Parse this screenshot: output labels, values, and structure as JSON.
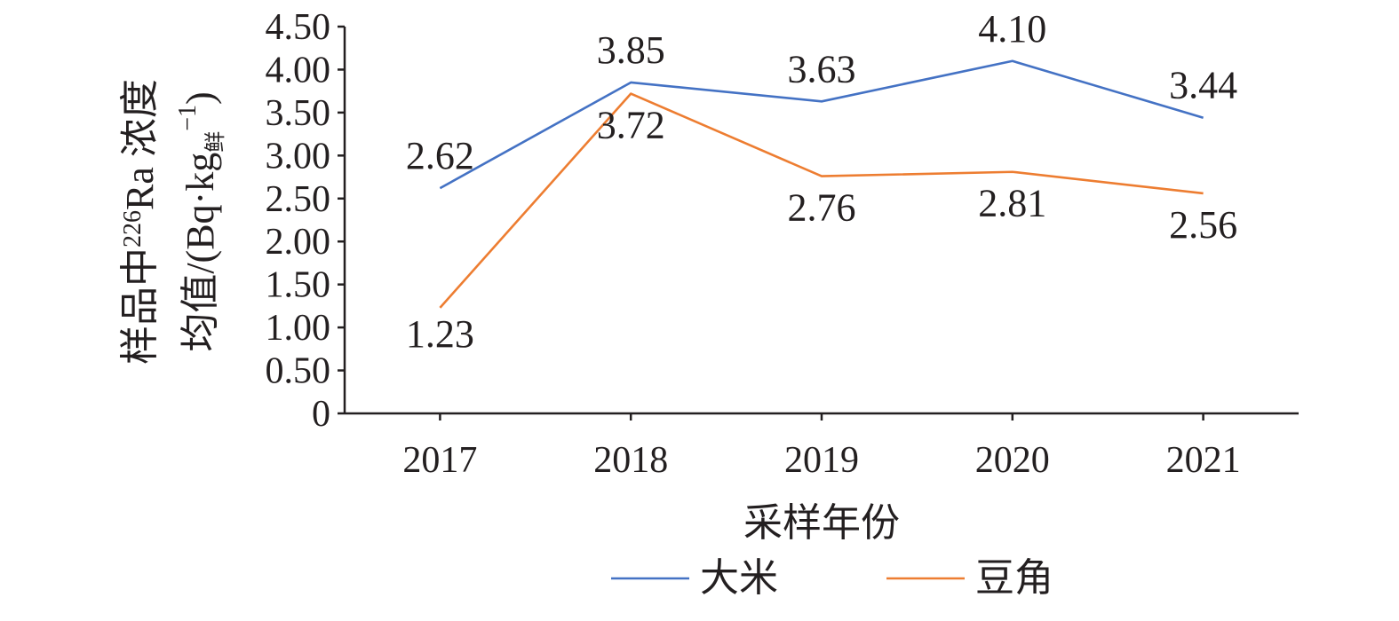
{
  "chart_data": {
    "type": "line",
    "categories": [
      "2017",
      "2018",
      "2019",
      "2020",
      "2021"
    ],
    "series": [
      {
        "name": "大米",
        "values": [
          2.62,
          3.85,
          3.63,
          4.1,
          3.44
        ],
        "labels": [
          "2.62",
          "3.85",
          "3.63",
          "4.10",
          "3.44"
        ],
        "color": "#4472c4"
      },
      {
        "name": "豆角",
        "values": [
          1.23,
          3.72,
          2.76,
          2.81,
          2.56
        ],
        "labels": [
          "1.23",
          "3.72",
          "2.76",
          "2.81",
          "2.56"
        ],
        "color": "#ed7d31"
      }
    ],
    "xlabel": "采样年份",
    "ylabel": {
      "line1_prefix": "样品中",
      "line1_sup": "226",
      "line1_suffix": "Ra 浓度",
      "line2_prefix": "均值/(Bq·kg",
      "line2_sub": "鲜",
      "line2_sup": "−1",
      "line2_suffix": ")"
    },
    "yticks": [
      "0",
      "0.50",
      "1.00",
      "1.50",
      "2.00",
      "2.50",
      "3.00",
      "3.50",
      "4.00",
      "4.50"
    ],
    "ylim": [
      0,
      4.5
    ],
    "grid": false,
    "legend_position": "bottom"
  }
}
